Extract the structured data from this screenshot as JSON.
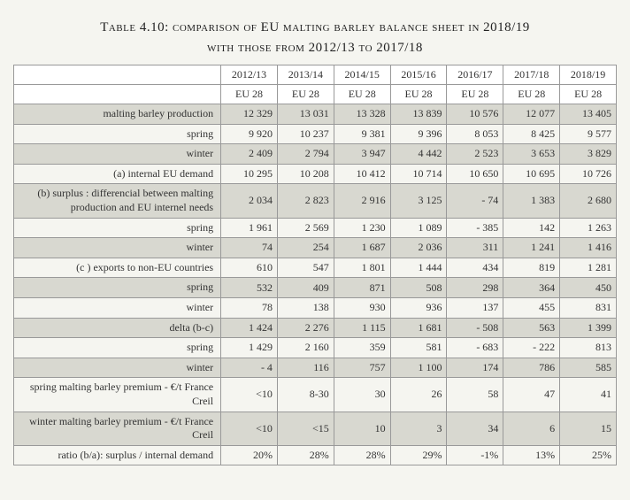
{
  "title_line1": "Table 4.10: comparison of EU malting barley balance sheet in 2018/19",
  "title_line2": "with those from 2012/13 to 2017/18",
  "years": [
    "2012/13",
    "2013/14",
    "2014/15",
    "2015/16",
    "2016/17",
    "2017/18",
    "2018/19"
  ],
  "subheader": [
    "EU 28",
    "EU 28",
    "EU 28",
    "EU 28",
    "EU 28",
    "EU 28",
    "EU 28"
  ],
  "rows": [
    {
      "label": "malting barley production",
      "shade": true,
      "values": [
        "12 329",
        "13 031",
        "13 328",
        "13 839",
        "10 576",
        "12 077",
        "13 405"
      ]
    },
    {
      "label": "spring",
      "shade": false,
      "values": [
        "9 920",
        "10 237",
        "9 381",
        "9 396",
        "8 053",
        "8 425",
        "9 577"
      ]
    },
    {
      "label": "winter",
      "shade": true,
      "values": [
        "2 409",
        "2 794",
        "3 947",
        "4 442",
        "2 523",
        "3 653",
        "3 829"
      ]
    },
    {
      "label": "(a) internal EU demand",
      "shade": false,
      "values": [
        "10 295",
        "10 208",
        "10 412",
        "10 714",
        "10 650",
        "10 695",
        "10 726"
      ]
    },
    {
      "label": "(b) surplus : differencial between malting production and EU internel needs",
      "shade": true,
      "values": [
        "2 034",
        "2 823",
        "2 916",
        "3 125",
        "- 74",
        "1 383",
        "2 680"
      ]
    },
    {
      "label": "spring",
      "shade": false,
      "values": [
        "1 961",
        "2 569",
        "1 230",
        "1 089",
        "- 385",
        "142",
        "1 263"
      ]
    },
    {
      "label": "winter",
      "shade": true,
      "values": [
        "74",
        "254",
        "1 687",
        "2 036",
        "311",
        "1 241",
        "1 416"
      ]
    },
    {
      "label": "(c ) exports to non-EU countries",
      "shade": false,
      "values": [
        "610",
        "547",
        "1 801",
        "1 444",
        "434",
        "819",
        "1 281"
      ]
    },
    {
      "label": "spring",
      "shade": true,
      "values": [
        "532",
        "409",
        "871",
        "508",
        "298",
        "364",
        "450"
      ]
    },
    {
      "label": "winter",
      "shade": false,
      "values": [
        "78",
        "138",
        "930",
        "936",
        "137",
        "455",
        "831"
      ]
    },
    {
      "label": "delta (b-c)",
      "shade": true,
      "values": [
        "1 424",
        "2 276",
        "1 115",
        "1 681",
        "- 508",
        "563",
        "1 399"
      ]
    },
    {
      "label": "spring",
      "shade": false,
      "values": [
        "1 429",
        "2 160",
        "359",
        "581",
        "- 683",
        "- 222",
        "813"
      ]
    },
    {
      "label": "winter",
      "shade": true,
      "values": [
        "- 4",
        "116",
        "757",
        "1 100",
        "174",
        "786",
        "585"
      ]
    },
    {
      "label": "spring malting barley premium   - €/t France Creil",
      "shade": false,
      "values": [
        "<10",
        "8-30",
        "30",
        "26",
        "58",
        "47",
        "41"
      ]
    },
    {
      "label": "winter malting barley premium - €/t France Creil",
      "shade": true,
      "values": [
        "<10",
        "<15",
        "10",
        "3",
        "34",
        "6",
        "15"
      ]
    },
    {
      "label": "ratio (b/a): surplus / internal demand",
      "shade": false,
      "values": [
        "20%",
        "28%",
        "28%",
        "29%",
        "-1%",
        "13%",
        "25%"
      ]
    }
  ]
}
